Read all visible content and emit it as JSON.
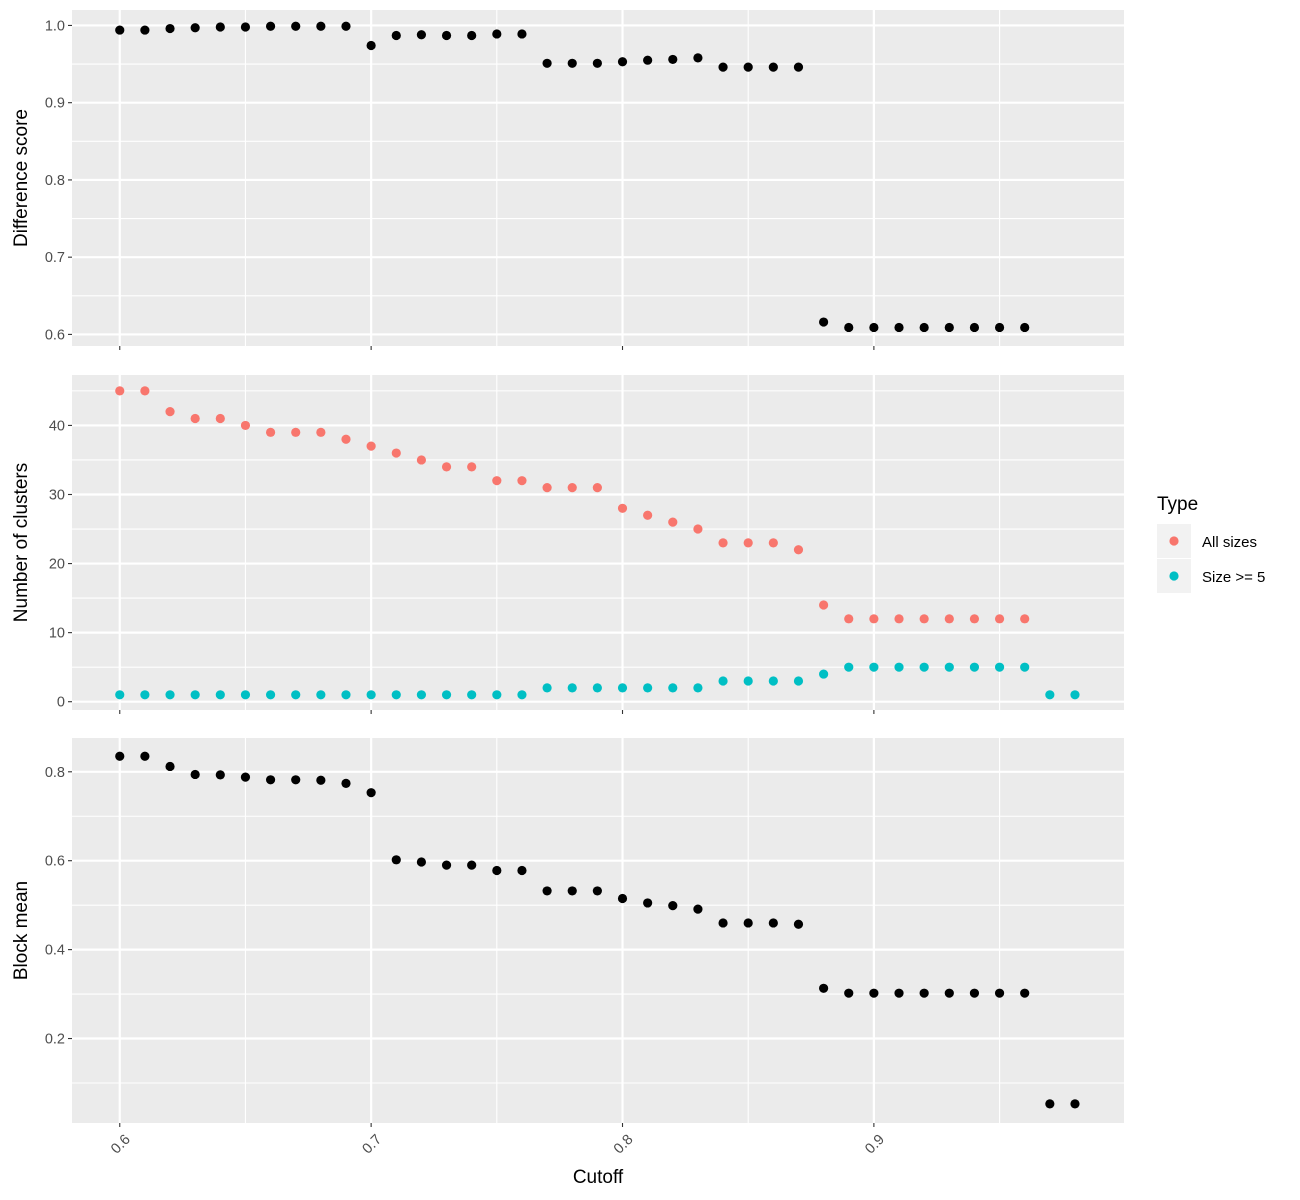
{
  "chart_data": {
    "type": "scatter",
    "x_axis": {
      "title": "Cutoff",
      "range": [
        0.581,
        0.9995
      ],
      "ticks": [
        0.6,
        0.7,
        0.8,
        0.9
      ],
      "tick_labels": [
        "0.6",
        "0.7",
        "0.8",
        "0.9"
      ],
      "minor_ticks": [
        0.65,
        0.75,
        0.85,
        0.95
      ]
    },
    "panels": [
      {
        "key": "difference",
        "ylabel": "Difference score",
        "ylim": [
          0.585,
          1.02
        ],
        "yticks": [
          0.6,
          0.7,
          0.8,
          0.9,
          1.0
        ],
        "ytick_labels": [
          "0.6",
          "0.7",
          "0.8",
          "0.9",
          "1.0"
        ],
        "yminor": [
          0.65,
          0.75,
          0.85,
          0.95
        ],
        "series": [
          {
            "color": "#000000",
            "x": [
              0.6,
              0.61,
              0.62,
              0.63,
              0.64,
              0.65,
              0.66,
              0.67,
              0.68,
              0.69,
              0.7,
              0.71,
              0.72,
              0.73,
              0.74,
              0.75,
              0.76,
              0.77,
              0.78,
              0.79,
              0.8,
              0.81,
              0.82,
              0.83,
              0.84,
              0.85,
              0.86,
              0.87,
              0.88,
              0.89,
              0.9,
              0.91,
              0.92,
              0.93,
              0.94,
              0.95,
              0.96
            ],
            "y": [
              0.994,
              0.994,
              0.996,
              0.997,
              0.998,
              0.998,
              0.999,
              0.999,
              0.999,
              0.999,
              0.974,
              0.987,
              0.988,
              0.987,
              0.987,
              0.989,
              0.989,
              0.951,
              0.951,
              0.951,
              0.953,
              0.955,
              0.956,
              0.958,
              0.946,
              0.946,
              0.946,
              0.946,
              0.616,
              0.609,
              0.609,
              0.609,
              0.609,
              0.609,
              0.609,
              0.609,
              0.609
            ]
          }
        ]
      },
      {
        "key": "clusters",
        "ylabel": "Number of clusters",
        "ylim": [
          -1.2,
          47.3
        ],
        "yticks": [
          0,
          10,
          20,
          30,
          40
        ],
        "ytick_labels": [
          "0",
          "10",
          "20",
          "30",
          "40"
        ],
        "yminor": [
          5,
          15,
          25,
          35,
          45
        ],
        "series": [
          {
            "name": "All sizes",
            "color": "#f8766d",
            "x": [
              0.6,
              0.61,
              0.62,
              0.63,
              0.64,
              0.65,
              0.66,
              0.67,
              0.68,
              0.69,
              0.7,
              0.71,
              0.72,
              0.73,
              0.74,
              0.75,
              0.76,
              0.77,
              0.78,
              0.79,
              0.8,
              0.81,
              0.82,
              0.83,
              0.84,
              0.85,
              0.86,
              0.87,
              0.88,
              0.89,
              0.9,
              0.91,
              0.92,
              0.93,
              0.94,
              0.95,
              0.96
            ],
            "y": [
              45,
              45,
              42,
              41,
              41,
              40,
              39,
              39,
              39,
              38,
              37,
              36,
              35,
              34,
              34,
              32,
              32,
              31,
              31,
              31,
              28,
              27,
              26,
              25,
              23,
              23,
              23,
              22,
              14,
              12,
              12,
              12,
              12,
              12,
              12,
              12,
              12
            ]
          },
          {
            "name": "Size >= 5",
            "color": "#00bfc4",
            "x": [
              0.6,
              0.61,
              0.62,
              0.63,
              0.64,
              0.65,
              0.66,
              0.67,
              0.68,
              0.69,
              0.7,
              0.71,
              0.72,
              0.73,
              0.74,
              0.75,
              0.76,
              0.77,
              0.78,
              0.79,
              0.8,
              0.81,
              0.82,
              0.83,
              0.84,
              0.85,
              0.86,
              0.87,
              0.88,
              0.89,
              0.9,
              0.91,
              0.92,
              0.93,
              0.94,
              0.95,
              0.96,
              0.97,
              0.98
            ],
            "y": [
              1,
              1,
              1,
              1,
              1,
              1,
              1,
              1,
              1,
              1,
              1,
              1,
              1,
              1,
              1,
              1,
              1,
              2,
              2,
              2,
              2,
              2,
              2,
              2,
              3,
              3,
              3,
              3,
              4,
              5,
              5,
              5,
              5,
              5,
              5,
              5,
              5,
              1,
              1
            ]
          }
        ]
      },
      {
        "key": "block_mean",
        "ylabel": "Block mean",
        "ylim": [
          0.01,
          0.876
        ],
        "yticks": [
          0.2,
          0.4,
          0.6,
          0.8
        ],
        "ytick_labels": [
          "0.2",
          "0.4",
          "0.6",
          "0.8"
        ],
        "yminor": [
          0.1,
          0.3,
          0.5,
          0.7
        ],
        "series": [
          {
            "color": "#000000",
            "x": [
              0.6,
              0.61,
              0.62,
              0.63,
              0.64,
              0.65,
              0.66,
              0.67,
              0.68,
              0.69,
              0.7,
              0.71,
              0.72,
              0.73,
              0.74,
              0.75,
              0.76,
              0.77,
              0.78,
              0.79,
              0.8,
              0.81,
              0.82,
              0.83,
              0.84,
              0.85,
              0.86,
              0.87,
              0.88,
              0.89,
              0.9,
              0.91,
              0.92,
              0.93,
              0.94,
              0.95,
              0.96,
              0.97,
              0.98
            ],
            "y": [
              0.835,
              0.835,
              0.812,
              0.794,
              0.793,
              0.788,
              0.782,
              0.782,
              0.781,
              0.774,
              0.753,
              0.602,
              0.597,
              0.59,
              0.59,
              0.578,
              0.578,
              0.532,
              0.532,
              0.532,
              0.515,
              0.505,
              0.499,
              0.491,
              0.46,
              0.46,
              0.46,
              0.457,
              0.313,
              0.302,
              0.302,
              0.302,
              0.302,
              0.302,
              0.302,
              0.302,
              0.302,
              0.053,
              0.053
            ]
          }
        ]
      }
    ],
    "legend": {
      "title": "Type",
      "placement": "right",
      "entries": [
        {
          "label": "All sizes",
          "color": "#f8766d"
        },
        {
          "label": "Size >= 5",
          "color": "#00bfc4"
        }
      ]
    }
  }
}
